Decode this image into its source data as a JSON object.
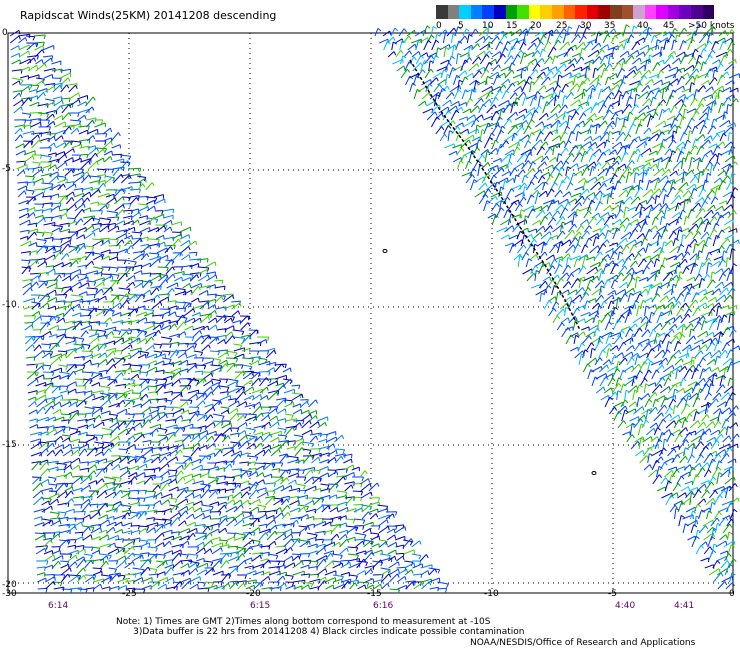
{
  "title": "Rapidscat Winds(25KM) 20141208 descending",
  "scale": {
    "colors": [
      "#3a3a3a",
      "#6a6a6a",
      "#9b9b9b",
      "#00c0ff",
      "#0080ff",
      "#0040ff",
      "#0000c8",
      "#00a000",
      "#40d000",
      "#ffff00",
      "#ffd000",
      "#ff8000",
      "#ff4000",
      "#ff0000",
      "#c00000",
      "#7a3a00",
      "#a0522d",
      "#c080c0",
      "#ff00ff",
      "#a000ff",
      "#7000c0",
      "#400080",
      "#200040",
      "#100020",
      "#080010",
      "#000000"
    ],
    "labels": [
      "0",
      "5",
      "10",
      "15",
      "20",
      "25",
      "30",
      "35",
      "40",
      "45",
      ">50 knots"
    ]
  },
  "axes": {
    "lat_labels": [
      "0",
      "-5",
      "-10",
      "-15",
      "-20"
    ],
    "lon_labels": [
      "-30",
      "-25",
      "-20",
      "-15",
      "-10",
      "-5",
      "0"
    ]
  },
  "times": [
    "6:14",
    "6:15",
    "6:16",
    "4:40",
    "4:41"
  ],
  "notes": {
    "line1": "Note: 1) Times are GMT 2)Times along bottom correspond to measurement at -10S",
    "line2": "      3)Data buffer is 22 hrs from 20141208 4) Black circles indicate possible contamination"
  },
  "credit": "NOAA/NESDIS/Office of Research and Applications"
}
